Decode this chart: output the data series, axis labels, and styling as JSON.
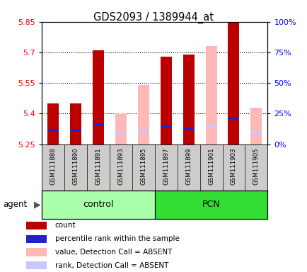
{
  "title": "GDS2093 / 1389944_at",
  "samples": [
    "GSM111888",
    "GSM111890",
    "GSM111891",
    "GSM111893",
    "GSM111895",
    "GSM111897",
    "GSM111899",
    "GSM111901",
    "GSM111903",
    "GSM111905"
  ],
  "ymin": 5.25,
  "ymax": 5.85,
  "yticks_left": [
    5.25,
    5.4,
    5.55,
    5.7,
    5.85
  ],
  "yticks_right": [
    0,
    25,
    50,
    75,
    100
  ],
  "bar_width": 0.5,
  "red_bars": [
    5.45,
    5.45,
    5.71,
    null,
    null,
    5.68,
    5.69,
    null,
    5.85,
    null
  ],
  "blue_bars": [
    5.31,
    5.31,
    5.34,
    null,
    null,
    5.33,
    5.32,
    null,
    5.37,
    null
  ],
  "pink_bars": [
    null,
    null,
    null,
    5.4,
    5.54,
    null,
    null,
    5.73,
    null,
    5.43
  ],
  "lavender_bars": [
    null,
    null,
    null,
    5.3,
    5.31,
    null,
    null,
    5.33,
    null,
    5.3
  ],
  "blue_bar_height": 0.013,
  "lavender_bar_height": 0.013,
  "red_color": "#bb0000",
  "blue_color": "#2222cc",
  "pink_color": "#ffb8b8",
  "lavender_color": "#c8c8ff",
  "control_color": "#aaffaa",
  "pcn_color": "#33dd33",
  "sample_bg_color": "#cccccc",
  "legend_items": [
    {
      "color": "#bb0000",
      "label": "count"
    },
    {
      "color": "#2222cc",
      "label": "percentile rank within the sample"
    },
    {
      "color": "#ffb8b8",
      "label": "value, Detection Call = ABSENT"
    },
    {
      "color": "#c8c8ff",
      "label": "rank, Detection Call = ABSENT"
    }
  ]
}
